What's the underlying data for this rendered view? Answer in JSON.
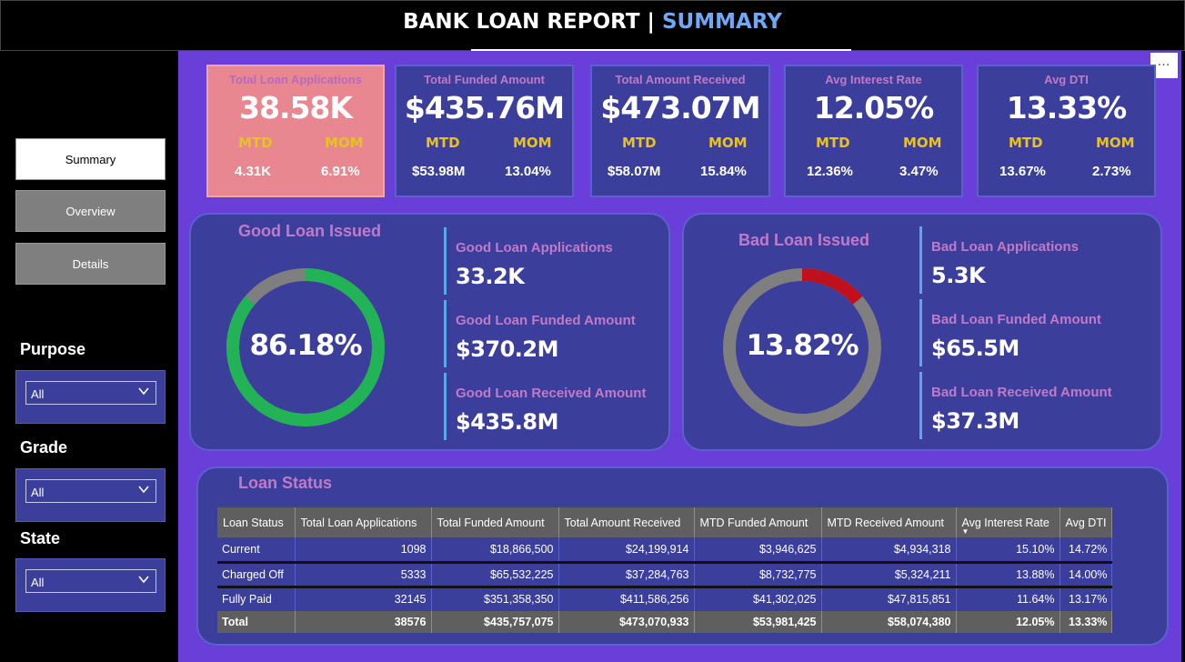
{
  "header": {
    "title_main": "BANK LOAN REPORT | ",
    "title_highlight": "SUMMARY"
  },
  "nav": [
    {
      "label": "Summary",
      "active": true
    },
    {
      "label": "Overview",
      "active": false
    },
    {
      "label": "Details",
      "active": false
    }
  ],
  "filters": [
    {
      "label": "Purpose",
      "value": "All"
    },
    {
      "label": "Grade",
      "value": "All"
    },
    {
      "label": "State",
      "value": "All"
    }
  ],
  "more_menu": "…",
  "kpis": [
    {
      "label": "Total Loan Applications",
      "value": "38.58K",
      "mtd_label": "MTD",
      "mom_label": "MOM",
      "mtd": "4.31K",
      "mom": "6.91%"
    },
    {
      "label": "Total Funded Amount",
      "value": "$435.76M",
      "mtd_label": "MTD",
      "mom_label": "MOM",
      "mtd": "$53.98M",
      "mom": "13.04%"
    },
    {
      "label": "Total Amount Received",
      "value": "$473.07M",
      "mtd_label": "MTD",
      "mom_label": "MOM",
      "mtd": "$58.07M",
      "mom": "15.84%"
    },
    {
      "label": "Avg Interest Rate",
      "value": "12.05%",
      "mtd_label": "MTD",
      "mom_label": "MOM",
      "mtd": "12.36%",
      "mom": "3.47%"
    },
    {
      "label": "Avg DTI",
      "value": "13.33%",
      "mtd_label": "MTD",
      "mom_label": "MOM",
      "mtd": "13.67%",
      "mom": "2.73%"
    }
  ],
  "good": {
    "title": "Good Loan Issued",
    "pct_label": "86.18%",
    "pct": 0.8618,
    "ring_color": "#22b357",
    "rest_color": "#7f7f7f",
    "metrics": [
      {
        "label": "Good Loan Applications",
        "value": "33.2K"
      },
      {
        "label": "Good Loan Funded Amount",
        "value": "$370.2M"
      },
      {
        "label": "Good Loan Received Amount",
        "value": "$435.8M"
      }
    ]
  },
  "bad": {
    "title": "Bad Loan Issued",
    "pct_label": "13.82%",
    "pct": 0.1382,
    "ring_color": "#c0101c",
    "rest_color": "#7f7f7f",
    "metrics": [
      {
        "label": "Bad Loan Applications",
        "value": "5.3K"
      },
      {
        "label": "Bad Loan Funded Amount",
        "value": "$65.5M"
      },
      {
        "label": "Bad Loan Received Amount",
        "value": "$37.3M"
      }
    ]
  },
  "status": {
    "title": "Loan Status",
    "columns": [
      "Loan Status",
      "Total Loan Applications",
      "Total Funded Amount",
      "Total Amount Received",
      "MTD Funded Amount",
      "MTD Received Amount",
      "Avg Interest Rate",
      "Avg DTI"
    ],
    "rows": [
      [
        "Current",
        "1098",
        "$18,866,500",
        "$24,199,914",
        "$3,946,625",
        "$4,934,318",
        "15.10%",
        "14.72%"
      ],
      [
        "Charged Off",
        "5333",
        "$65,532,225",
        "$37,284,763",
        "$8,732,775",
        "$5,324,211",
        "13.88%",
        "14.00%"
      ],
      [
        "Fully Paid",
        "32145",
        "$351,358,350",
        "$411,586,256",
        "$41,302,025",
        "$47,815,851",
        "11.64%",
        "13.17%"
      ]
    ],
    "total": [
      "Total",
      "38576",
      "$435,757,075",
      "$473,070,933",
      "$53,981,425",
      "$58,074,380",
      "12.05%",
      "13.33%"
    ]
  },
  "colors": {
    "accent_blue": "#6fa8f5",
    "panel": "#3b3f9b",
    "background": "#6a3fd9",
    "label_purple": "#c07ac8",
    "mtd_yellow": "#e6c31f"
  }
}
